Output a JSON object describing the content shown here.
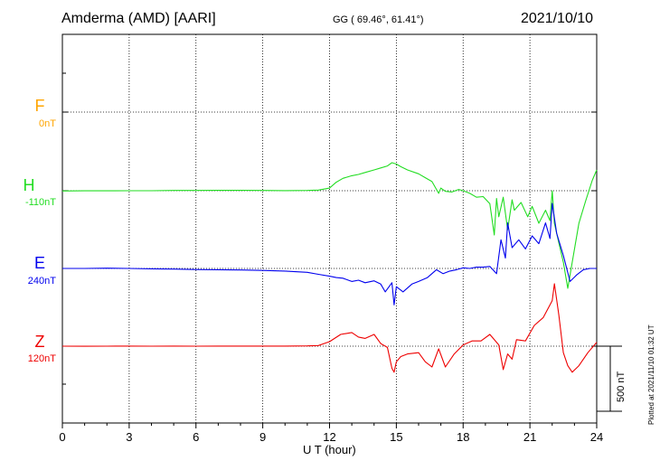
{
  "header": {
    "station": "Amderma (AMD)  [AARI]",
    "coords": "GG ( 69.46°,  61.41°)",
    "date": "2021/10/10"
  },
  "footer": {
    "plotted": "Plotted at 2021/11/10 01:32 UT"
  },
  "chart_data": {
    "type": "line",
    "xlabel": "U T (hour)",
    "x_ticks": [
      0,
      3,
      6,
      9,
      12,
      15,
      18,
      21,
      24
    ],
    "xlim": [
      0,
      24
    ],
    "scale_bar_label": "500 nT",
    "scale_bar_nT": 500,
    "series": [
      {
        "name": "F",
        "baseline_label": "0nT",
        "color": "#FFA500",
        "offset_slot": 0,
        "x": [],
        "values": []
      },
      {
        "name": "H",
        "baseline_label": "-110nT",
        "color": "#22DD22",
        "offset_slot": 1,
        "x": [
          0,
          1,
          2,
          3,
          4,
          5,
          6,
          7,
          8,
          9,
          10,
          11,
          11.5,
          12,
          12.3,
          12.6,
          13,
          13.3,
          13.6,
          14,
          14.3,
          14.6,
          14.8,
          15,
          15.2,
          15.5,
          16,
          16.3,
          16.6,
          16.9,
          17,
          17.2,
          17.5,
          17.8,
          18,
          18.3,
          18.6,
          18.9,
          19.2,
          19.4,
          19.5,
          19.6,
          19.8,
          20,
          20.2,
          20.3,
          20.6,
          20.9,
          21.1,
          21.4,
          21.7,
          21.9,
          22,
          22.1,
          22.3,
          22.5,
          22.7,
          22.9,
          23.2,
          23.5,
          23.8,
          24
        ],
        "values": [
          -2,
          -1,
          -1,
          0,
          0,
          2,
          2,
          3,
          3,
          2,
          1,
          2,
          5,
          20,
          65,
          95,
          115,
          125,
          140,
          160,
          175,
          190,
          215,
          205,
          185,
          160,
          130,
          100,
          70,
          -20,
          20,
          -5,
          -10,
          10,
          0,
          -20,
          -50,
          -45,
          -100,
          -340,
          -60,
          -200,
          -50,
          -300,
          -70,
          -150,
          -90,
          -200,
          -120,
          -250,
          -150,
          -230,
          0,
          -250,
          -400,
          -550,
          -750,
          -550,
          -250,
          -80,
          80,
          160
        ],
        "unit": "nT"
      },
      {
        "name": "E",
        "baseline_label": "240nT",
        "color": "#0000EE",
        "offset_slot": 2,
        "x": [
          0,
          1,
          2,
          3,
          4,
          5,
          6,
          7,
          8,
          9,
          10,
          11,
          11.5,
          12,
          12.3,
          12.6,
          13,
          13.3,
          13.6,
          14,
          14.3,
          14.5,
          14.8,
          14.9,
          15,
          15.3,
          15.7,
          16,
          16.4,
          16.8,
          17.1,
          17.4,
          17.7,
          18,
          18.3,
          18.6,
          18.9,
          19.2,
          19.5,
          19.7,
          19.9,
          20,
          20.2,
          20.5,
          20.8,
          21.1,
          21.4,
          21.7,
          21.9,
          22,
          22.2,
          22.5,
          22.8,
          23.1,
          23.4,
          23.7,
          24
        ],
        "values": [
          0,
          0,
          2,
          0,
          -3,
          -5,
          -8,
          -10,
          -12,
          -15,
          -20,
          -30,
          -45,
          -60,
          -70,
          -75,
          -100,
          -90,
          -110,
          -95,
          -120,
          -180,
          -110,
          -280,
          -140,
          -180,
          -120,
          -100,
          -70,
          -10,
          -40,
          -20,
          -10,
          5,
          0,
          10,
          10,
          15,
          -40,
          220,
          80,
          350,
          160,
          220,
          150,
          250,
          190,
          350,
          230,
          500,
          270,
          100,
          -100,
          -50,
          -10,
          0,
          0
        ],
        "unit": "nT"
      },
      {
        "name": "Z",
        "baseline_label": "120nT",
        "color": "#EE0000",
        "offset_slot": 3,
        "x": [
          0,
          1,
          2,
          3,
          4,
          5,
          6,
          7,
          8,
          9,
          10,
          11,
          11.5,
          12,
          12.5,
          13,
          13.3,
          13.6,
          14,
          14.3,
          14.6,
          14.8,
          14.9,
          15,
          15.2,
          15.5,
          16,
          16.3,
          16.6,
          16.9,
          17.2,
          17.6,
          18,
          18.4,
          18.8,
          19.2,
          19.6,
          19.8,
          20,
          20.2,
          20.4,
          20.8,
          21.2,
          21.6,
          22,
          22.1,
          22.3,
          22.5,
          22.7,
          22.9,
          23.2,
          23.6,
          24
        ],
        "values": [
          0,
          -1,
          0,
          1,
          0,
          1,
          0,
          1,
          1,
          1,
          1,
          2,
          5,
          35,
          90,
          105,
          70,
          60,
          90,
          20,
          -10,
          -170,
          -200,
          -120,
          -80,
          -60,
          -50,
          -120,
          -160,
          -20,
          -160,
          -60,
          10,
          40,
          40,
          90,
          10,
          -180,
          -60,
          -100,
          50,
          40,
          160,
          220,
          350,
          480,
          240,
          -50,
          -150,
          -200,
          -150,
          -50,
          30
        ],
        "unit": "nT"
      }
    ]
  }
}
